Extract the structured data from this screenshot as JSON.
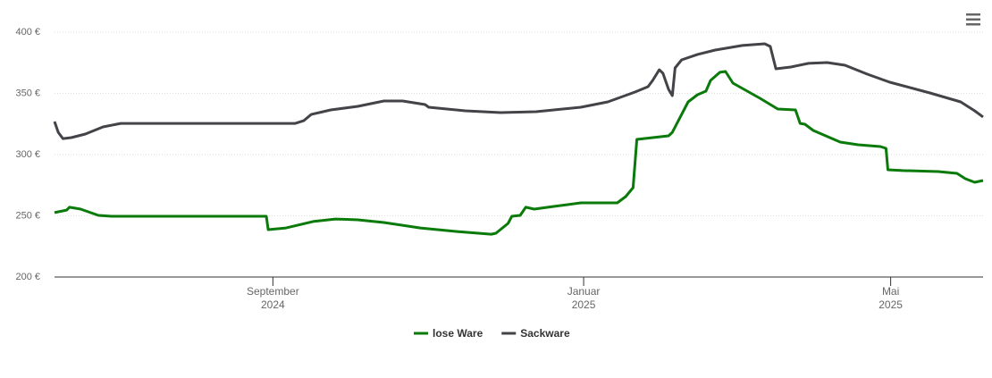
{
  "chart_data": {
    "type": "line",
    "xlim": [
      2024.433,
      2025.428
    ],
    "xticks": [
      {
        "value": 2024.667,
        "label": "September\n2024"
      },
      {
        "value": 2025.0,
        "label": "Januar\n2025"
      },
      {
        "value": 2025.329,
        "label": "Mai\n2025"
      }
    ],
    "ylim": [
      200,
      400
    ],
    "yticks": [
      {
        "value": 200,
        "label": "200 €"
      },
      {
        "value": 250,
        "label": "250 €"
      },
      {
        "value": 300,
        "label": "300 €"
      },
      {
        "value": 350,
        "label": "350 €"
      },
      {
        "value": 400,
        "label": "400 €"
      }
    ],
    "grid": true,
    "legend": "bottom",
    "series": [
      {
        "name": "lose Ware",
        "color": "#0a7a0a",
        "x": [
          2024.433,
          2024.446,
          2024.449,
          2024.461,
          2024.48,
          2024.494,
          2024.66,
          2024.662,
          2024.681,
          2024.71,
          2024.734,
          2024.758,
          2024.786,
          2024.825,
          2024.863,
          2024.901,
          2024.906,
          2024.919,
          2024.923,
          2024.932,
          2024.938,
          2024.947,
          2024.968,
          2024.997,
          2025.036,
          2025.045,
          2025.053,
          2025.057,
          2025.074,
          2025.091,
          2025.095,
          2025.112,
          2025.122,
          2025.131,
          2025.136,
          2025.146,
          2025.152,
          2025.16,
          2025.189,
          2025.208,
          2025.227,
          2025.232,
          2025.237,
          2025.246,
          2025.275,
          2025.294,
          2025.318,
          2025.324,
          2025.326,
          2025.342,
          2025.38,
          2025.4,
          2025.409,
          2025.419,
          2025.428
        ],
        "values": [
          252.6,
          254.7,
          257.0,
          255.5,
          250.4,
          249.6,
          249.6,
          238.7,
          240.1,
          245.3,
          247.4,
          246.7,
          244.5,
          240.1,
          237.2,
          235.0,
          235.8,
          243.8,
          249.6,
          250.4,
          257.0,
          255.5,
          257.7,
          260.6,
          260.6,
          265.7,
          273.0,
          312.4,
          313.9,
          315.3,
          318.2,
          343.1,
          348.9,
          351.8,
          360.6,
          367.2,
          367.9,
          358.4,
          346.0,
          337.2,
          336.5,
          325.5,
          324.8,
          319.7,
          310.2,
          308.0,
          306.6,
          305.1,
          287.6,
          286.9,
          286.1,
          284.7,
          280.3,
          277.4,
          278.8
        ]
      },
      {
        "name": "Sackware",
        "color": "#434348",
        "x": [
          2024.433,
          2024.437,
          2024.442,
          2024.451,
          2024.466,
          2024.485,
          2024.504,
          2024.691,
          2024.7,
          2024.708,
          2024.729,
          2024.758,
          2024.786,
          2024.806,
          2024.83,
          2024.834,
          2024.873,
          2024.911,
          2024.949,
          2024.997,
          2025.026,
          2025.055,
          2025.069,
          2025.074,
          2025.081,
          2025.085,
          2025.091,
          2025.095,
          2025.098,
          2025.105,
          2025.122,
          2025.141,
          2025.17,
          2025.194,
          2025.2,
          2025.206,
          2025.222,
          2025.241,
          2025.261,
          2025.28,
          2025.304,
          2025.328,
          2025.371,
          2025.404,
          2025.419,
          2025.428
        ],
        "values": [
          327.0,
          318.2,
          313.1,
          313.9,
          316.8,
          322.6,
          325.5,
          325.5,
          327.7,
          332.8,
          336.5,
          339.4,
          343.8,
          343.8,
          340.9,
          338.7,
          335.8,
          334.3,
          335.0,
          338.7,
          343.1,
          351.1,
          355.5,
          360.6,
          369.3,
          366.4,
          353.3,
          348.2,
          370.8,
          377.4,
          381.8,
          385.4,
          389.1,
          390.5,
          388.3,
          370.1,
          371.5,
          374.5,
          375.2,
          373.0,
          365.7,
          359.1,
          350.4,
          343.1,
          335.8,
          330.7
        ]
      }
    ]
  }
}
